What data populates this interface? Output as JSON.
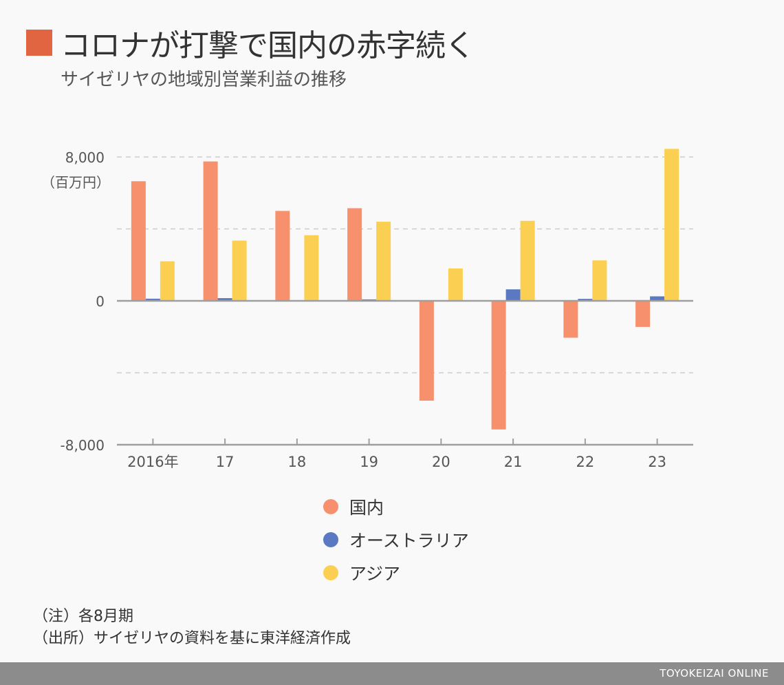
{
  "colors": {
    "title_mark": "#e06540",
    "domestic": "#f6906d",
    "australia": "#5b78c3",
    "asia": "#fbd052",
    "axis": "#9e9e9e",
    "grid": "#cccccc",
    "footer_bar": "#8c8c8c"
  },
  "header": {
    "title": "コロナが打撃で国内の赤字続く",
    "subtitle": "サイゼリヤの地域別営業利益の推移"
  },
  "notes": {
    "line1": "（注）各8月期",
    "line2": "（出所）サイゼリヤの資料を基に東洋経済作成"
  },
  "footer": {
    "brand": "TOYOKEIZAI ONLINE"
  },
  "chart_data": {
    "type": "bar",
    "unit": "（百万円）",
    "categories": [
      "2016年",
      "17",
      "18",
      "19",
      "20",
      "21",
      "22",
      "23"
    ],
    "series": [
      {
        "name": "国内",
        "values": [
          6650,
          7750,
          5000,
          5150,
          -5550,
          -7150,
          -2050,
          -1450
        ]
      },
      {
        "name": "オーストラリア",
        "values": [
          120,
          150,
          30,
          80,
          -30,
          640,
          110,
          250
        ]
      },
      {
        "name": "アジア",
        "values": [
          2200,
          3350,
          3650,
          4400,
          1800,
          4450,
          2250,
          8450
        ]
      }
    ],
    "yticks": [
      8000,
      0,
      -8000
    ],
    "ytick_labels": [
      "8,000",
      "0",
      "-8,000"
    ],
    "ylim": [
      -8000,
      8000
    ],
    "gridlines": [
      8000,
      4000,
      0,
      -4000
    ],
    "grid": true,
    "legend_position": "bottom"
  }
}
